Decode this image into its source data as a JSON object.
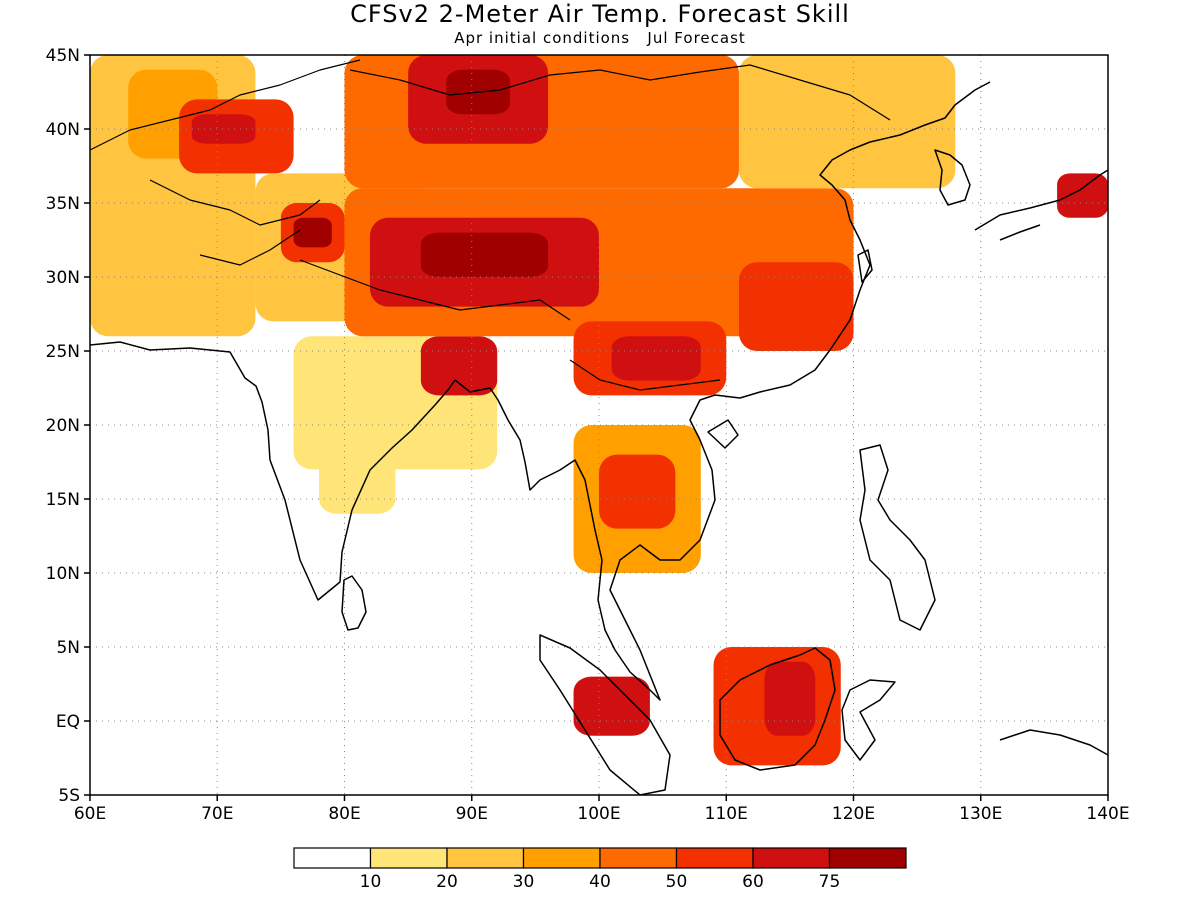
{
  "title": "CFSv2 2-Meter Air Temp. Forecast Skill",
  "subtitle": "Apr initial conditions   Jul Forecast",
  "map": {
    "projection": "lat-lon",
    "lon_range": [
      60,
      140
    ],
    "lat_range": [
      -5,
      45
    ],
    "x_ticks": [
      {
        "lon": 60,
        "label": "60E"
      },
      {
        "lon": 70,
        "label": "70E"
      },
      {
        "lon": 80,
        "label": "80E"
      },
      {
        "lon": 90,
        "label": "90E"
      },
      {
        "lon": 100,
        "label": "100E"
      },
      {
        "lon": 110,
        "label": "110E"
      },
      {
        "lon": 120,
        "label": "120E"
      },
      {
        "lon": 130,
        "label": "130E"
      },
      {
        "lon": 140,
        "label": "140E"
      }
    ],
    "y_ticks": [
      {
        "lat": 45,
        "label": "45N"
      },
      {
        "lat": 40,
        "label": "40N"
      },
      {
        "lat": 35,
        "label": "35N"
      },
      {
        "lat": 30,
        "label": "30N"
      },
      {
        "lat": 25,
        "label": "25N"
      },
      {
        "lat": 20,
        "label": "20N"
      },
      {
        "lat": 15,
        "label": "15N"
      },
      {
        "lat": 10,
        "label": "10N"
      },
      {
        "lat": 5,
        "label": "5N"
      },
      {
        "lat": 0,
        "label": "EQ"
      },
      {
        "lat": -5,
        "label": "5S"
      }
    ],
    "grid": true,
    "grid_style": "dotted",
    "skill_regions": [
      {
        "lon": [
          60,
          73
        ],
        "lat": [
          26,
          45
        ],
        "level": 2
      },
      {
        "lon": [
          63,
          70
        ],
        "lat": [
          38,
          44
        ],
        "level": 3
      },
      {
        "lon": [
          67,
          76
        ],
        "lat": [
          37,
          42
        ],
        "level": 5
      },
      {
        "lon": [
          68,
          73
        ],
        "lat": [
          39,
          41
        ],
        "level": 6
      },
      {
        "lon": [
          73,
          86
        ],
        "lat": [
          27,
          37
        ],
        "level": 2
      },
      {
        "lon": [
          75,
          80
        ],
        "lat": [
          31,
          35
        ],
        "level": 5
      },
      {
        "lon": [
          76,
          79
        ],
        "lat": [
          32,
          34
        ],
        "level": 7
      },
      {
        "lon": [
          76,
          92
        ],
        "lat": [
          17,
          26
        ],
        "level": 1
      },
      {
        "lon": [
          78,
          84
        ],
        "lat": [
          14,
          18
        ],
        "level": 1
      },
      {
        "lon": [
          86,
          92
        ],
        "lat": [
          22,
          26
        ],
        "level": 6
      },
      {
        "lon": [
          80,
          111
        ],
        "lat": [
          36,
          45
        ],
        "level": 4
      },
      {
        "lon": [
          85,
          96
        ],
        "lat": [
          39,
          45
        ],
        "level": 6
      },
      {
        "lon": [
          88,
          93
        ],
        "lat": [
          41,
          44
        ],
        "level": 7
      },
      {
        "lon": [
          80,
          120
        ],
        "lat": [
          26,
          36
        ],
        "level": 4
      },
      {
        "lon": [
          82,
          100
        ],
        "lat": [
          28,
          34
        ],
        "level": 6
      },
      {
        "lon": [
          86,
          96
        ],
        "lat": [
          30,
          33
        ],
        "level": 7
      },
      {
        "lon": [
          98,
          110
        ],
        "lat": [
          22,
          27
        ],
        "level": 5
      },
      {
        "lon": [
          101,
          108
        ],
        "lat": [
          23,
          26
        ],
        "level": 6
      },
      {
        "lon": [
          111,
          120
        ],
        "lat": [
          25,
          31
        ],
        "level": 5
      },
      {
        "lon": [
          111,
          128
        ],
        "lat": [
          36,
          45
        ],
        "level": 2
      },
      {
        "lon": [
          98,
          108
        ],
        "lat": [
          10,
          20
        ],
        "level": 3
      },
      {
        "lon": [
          100,
          106
        ],
        "lat": [
          13,
          18
        ],
        "level": 5
      },
      {
        "lon": [
          109,
          119
        ],
        "lat": [
          -3,
          5
        ],
        "level": 5
      },
      {
        "lon": [
          113,
          117
        ],
        "lat": [
          -1,
          4
        ],
        "level": 6
      },
      {
        "lon": [
          98,
          104
        ],
        "lat": [
          -1,
          3
        ],
        "level": 6
      },
      {
        "lon": [
          136,
          140
        ],
        "lat": [
          34,
          37
        ],
        "level": 6
      }
    ]
  },
  "legend": {
    "colors": [
      "#ffffff",
      "#ffe478",
      "#ffc440",
      "#ffa000",
      "#ff6a00",
      "#f23000",
      "#d01010",
      "#a00000"
    ],
    "labels": [
      "10",
      "20",
      "30",
      "40",
      "50",
      "60",
      "75"
    ]
  }
}
